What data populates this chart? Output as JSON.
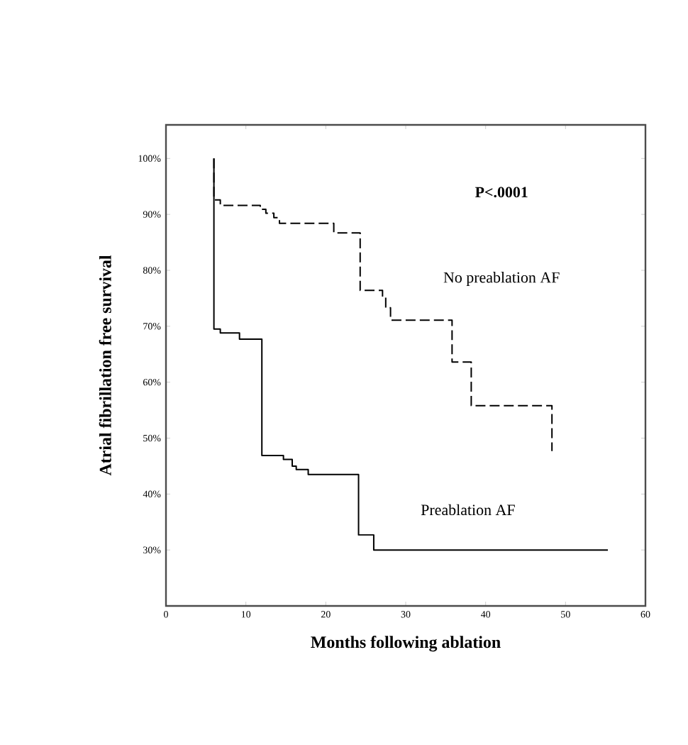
{
  "chart_data": {
    "type": "step",
    "xlabel": "Months following ablation",
    "ylabel": "Atrial fibrillation free survival",
    "annotations": [
      "P<.0001"
    ],
    "xlim": [
      0,
      60
    ],
    "xticks": [
      0,
      10,
      20,
      30,
      40,
      50,
      60
    ],
    "ylim": [
      20,
      106
    ],
    "yticks": [
      {
        "value": 20,
        "label": null
      },
      {
        "value": 30,
        "label": "30%"
      },
      {
        "value": 40,
        "label": "40%"
      },
      {
        "value": 50,
        "label": "50%"
      },
      {
        "value": 60,
        "label": "60%"
      },
      {
        "value": 70,
        "label": "70%"
      },
      {
        "value": 80,
        "label": "80%"
      },
      {
        "value": 90,
        "label": "90%"
      },
      {
        "value": 100,
        "label": "100%"
      }
    ],
    "series": [
      {
        "name": "No preablation AF",
        "color": "#000000",
        "line_style": "dashed",
        "x": [
          6,
          6,
          6.8,
          11.8,
          12.5,
          13.5,
          14.2,
          21,
          24.3,
          27.1,
          27.5,
          28.1,
          35.8,
          38.2,
          48.3
        ],
        "values": [
          100,
          92.6,
          91.6,
          90.9,
          90.2,
          89.4,
          88.4,
          86.7,
          76.4,
          75.2,
          73.3,
          71.1,
          63.6,
          55.8,
          47.7
        ]
      },
      {
        "name": "Preablation AF",
        "color": "#000000",
        "line_style": "solid",
        "x": [
          6,
          6,
          6.8,
          9.2,
          12,
          14.7,
          15.8,
          16.3,
          17.8,
          24.1,
          26,
          55.3
        ],
        "values": [
          100,
          69.5,
          68.8,
          67.7,
          46.9,
          46.2,
          45,
          44.4,
          43.5,
          32.7,
          30,
          30
        ]
      }
    ]
  }
}
